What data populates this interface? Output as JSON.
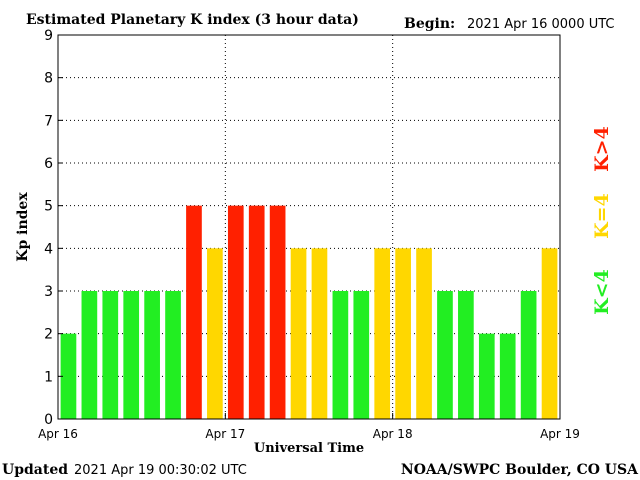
{
  "header": {
    "title": "Estimated Planetary K index (3 hour data)",
    "begin_label": "Begin:",
    "begin_value": "2021 Apr 16 0000 UTC"
  },
  "footer": {
    "updated_label": "Updated",
    "updated_value": "2021 Apr 19 00:30:02 UTC",
    "source": "NOAA/SWPC Boulder, CO USA"
  },
  "legend": {
    "high": "K>4",
    "mid": "K=4",
    "low": "K<4"
  },
  "colors": {
    "high": "#ff2000",
    "mid": "#ffd700",
    "low": "#22ee22",
    "grid": "#000000"
  },
  "chart_data": {
    "type": "bar",
    "xlabel": "Universal Time",
    "ylabel": "Kp index",
    "ylim": [
      0,
      9
    ],
    "yticks": [
      "0",
      "1",
      "2",
      "3",
      "4",
      "5",
      "6",
      "7",
      "8",
      "9"
    ],
    "xticks": [
      "Apr 16",
      "Apr 17",
      "Apr 18",
      "Apr 19"
    ],
    "grid": "dotted",
    "values": [
      2,
      3,
      3,
      3,
      3,
      3,
      5,
      4,
      5,
      5,
      5,
      4,
      4,
      3,
      3,
      4,
      4,
      4,
      3,
      3,
      2,
      2,
      3,
      4
    ],
    "levels": [
      "low",
      "low",
      "low",
      "low",
      "low",
      "low",
      "high",
      "mid",
      "high",
      "high",
      "high",
      "mid",
      "mid",
      "low",
      "low",
      "mid",
      "mid",
      "mid",
      "low",
      "low",
      "low",
      "low",
      "low",
      "mid"
    ]
  }
}
